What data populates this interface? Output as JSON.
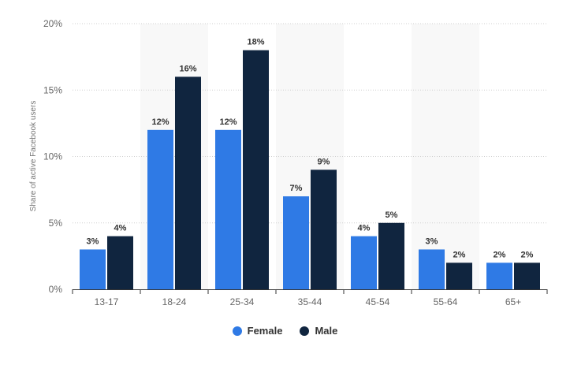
{
  "chart_data": {
    "type": "bar",
    "categories": [
      "13-17",
      "18-24",
      "25-34",
      "35-44",
      "45-54",
      "55-64",
      "65+"
    ],
    "series": [
      {
        "name": "Female",
        "values": [
          3,
          12,
          12,
          7,
          4,
          3,
          2
        ],
        "color": "#2f7ae5"
      },
      {
        "name": "Male",
        "values": [
          4,
          16,
          18,
          9,
          5,
          2,
          2
        ],
        "color": "#10253f"
      }
    ],
    "data_labels": {
      "Female": [
        "3%",
        "12%",
        "12%",
        "7%",
        "4%",
        "3%",
        "2%"
      ],
      "Male": [
        "4%",
        "16%",
        "18%",
        "9%",
        "5%",
        "2%",
        "2%"
      ]
    },
    "ylabel": "Share of active Facebook users",
    "ylim": [
      0,
      20
    ],
    "yticks": [
      0,
      5,
      10,
      15,
      20
    ],
    "ytick_labels": [
      "0%",
      "5%",
      "10%",
      "15%",
      "20%"
    ],
    "grid": true,
    "legend_position": "bottom-center"
  }
}
